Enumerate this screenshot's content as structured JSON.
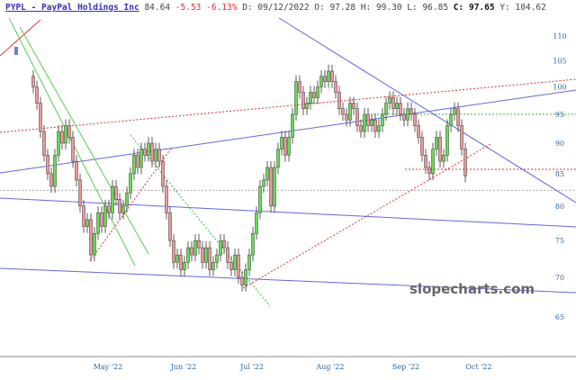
{
  "header": {
    "symbol": "PYPL - PayPal Holdings Inc",
    "last": "84.64",
    "change": "-5.53",
    "change_pct": "-6.13%",
    "date": "D: 09/12/2022",
    "open": "O:  97.28",
    "high": "H:  99.30",
    "low": "L:  96.85",
    "close_label": "C:",
    "close": "97.65",
    "y": "Y: 104.62"
  },
  "watermark": "slopecharts.com",
  "chart_data": {
    "type": "candlestick",
    "y_scale": "log",
    "ylim": [
      62,
      113
    ],
    "y_ticks": [
      "110",
      "105",
      "100",
      "95",
      "90",
      "85",
      "80",
      "75",
      "70",
      "65"
    ],
    "x_ticks": [
      "May '22",
      "Jun '22",
      "Jul '22",
      "Aug '22",
      "Sep '22",
      "Oct '22"
    ],
    "horizontal_levels": [
      {
        "price": 95,
        "color": "#33bb33"
      },
      {
        "price": 85.7,
        "color": "#e03030"
      },
      {
        "price": 82.4,
        "color": "#aaaaaa"
      }
    ],
    "colors": {
      "up": "#66dd55",
      "down": "#ee9999",
      "trendline": "#6666dd"
    },
    "close": [
      100,
      97,
      92,
      88,
      85,
      83,
      88,
      92,
      90,
      93,
      91,
      87,
      84,
      80,
      77,
      78,
      73,
      76,
      79,
      77,
      80,
      79,
      83,
      81,
      79,
      80,
      82,
      85,
      88,
      86,
      89,
      88,
      90,
      87,
      89,
      87,
      83,
      79,
      75,
      72,
      73,
      71,
      72,
      74,
      73,
      75,
      74,
      72,
      74,
      71,
      72,
      73,
      75,
      74,
      72,
      71,
      73,
      70,
      69,
      71,
      73,
      76,
      79,
      83,
      84,
      86,
      80,
      86,
      89,
      91,
      88,
      91,
      95,
      101,
      99,
      96,
      97,
      99,
      98,
      100,
      102,
      101,
      103,
      101,
      99,
      96,
      95,
      94,
      97,
      96,
      93,
      92,
      95,
      93,
      94,
      92,
      93,
      95,
      97,
      98,
      96,
      97,
      95,
      94,
      96,
      95,
      93,
      91,
      88,
      86,
      85,
      89,
      91,
      87,
      88,
      93,
      95,
      96,
      93,
      89,
      84.64
    ]
  }
}
